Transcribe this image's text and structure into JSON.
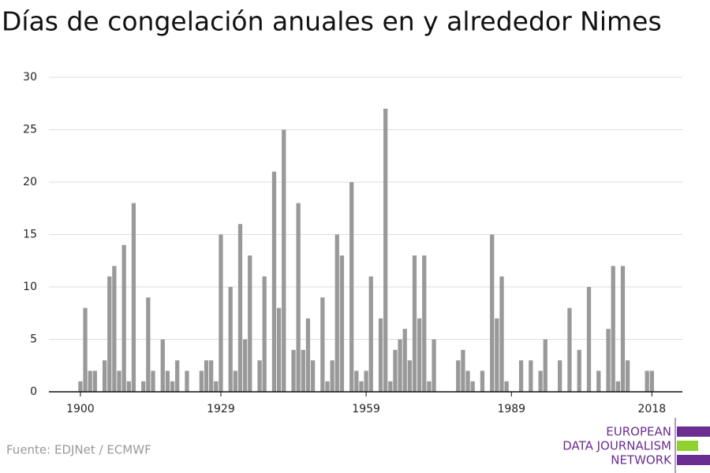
{
  "chart_data": {
    "type": "bar",
    "title": "Días de congelación anuales en y alrededor Nimes",
    "source": "Fuente: EDJNet / ECMWF",
    "logo": [
      "EUROPEAN",
      "DATA JOURNALISM",
      "NETWORK"
    ],
    "color": "#999999",
    "x": [
      1900,
      1901,
      1902,
      1903,
      1904,
      1905,
      1906,
      1907,
      1908,
      1909,
      1910,
      1911,
      1912,
      1913,
      1914,
      1915,
      1916,
      1917,
      1918,
      1919,
      1920,
      1921,
      1922,
      1923,
      1924,
      1925,
      1926,
      1927,
      1928,
      1929,
      1930,
      1931,
      1932,
      1933,
      1934,
      1935,
      1936,
      1937,
      1938,
      1939,
      1940,
      1941,
      1942,
      1943,
      1944,
      1945,
      1946,
      1947,
      1948,
      1949,
      1950,
      1951,
      1952,
      1953,
      1954,
      1955,
      1956,
      1957,
      1958,
      1959,
      1960,
      1961,
      1962,
      1963,
      1964,
      1965,
      1966,
      1967,
      1968,
      1969,
      1970,
      1971,
      1972,
      1973,
      1974,
      1975,
      1976,
      1977,
      1978,
      1979,
      1980,
      1981,
      1982,
      1983,
      1984,
      1985,
      1986,
      1987,
      1988,
      1989,
      1990,
      1991,
      1992,
      1993,
      1994,
      1995,
      1996,
      1997,
      1998,
      1999,
      2000,
      2001,
      2002,
      2003,
      2004,
      2005,
      2006,
      2007,
      2008,
      2009,
      2010,
      2011,
      2012,
      2013,
      2014,
      2015,
      2016,
      2017,
      2018
    ],
    "values": [
      1,
      8,
      2,
      2,
      0,
      3,
      11,
      12,
      2,
      14,
      1,
      18,
      0,
      1,
      9,
      2,
      0,
      5,
      2,
      1,
      3,
      0,
      2,
      0,
      0,
      2,
      3,
      3,
      1,
      15,
      0,
      10,
      2,
      16,
      5,
      13,
      0,
      3,
      11,
      0,
      21,
      8,
      25,
      0,
      4,
      18,
      4,
      7,
      3,
      0,
      9,
      1,
      3,
      15,
      13,
      0,
      20,
      2,
      1,
      2,
      11,
      0,
      7,
      27,
      1,
      4,
      5,
      6,
      3,
      13,
      7,
      13,
      1,
      5,
      0,
      0,
      0,
      0,
      3,
      4,
      2,
      1,
      0,
      2,
      0,
      15,
      7,
      11,
      1,
      0,
      0,
      3,
      0,
      3,
      0,
      2,
      5,
      0,
      0,
      3,
      0,
      8,
      0,
      4,
      0,
      10,
      0,
      2,
      0,
      6,
      12,
      1,
      12,
      3,
      0,
      0,
      0,
      2,
      2
    ],
    "xlim": [
      1893.5,
      2024.3
    ],
    "xticks": [
      1900,
      1929,
      1959,
      1989,
      2018
    ],
    "ylim": [
      0,
      30
    ],
    "yticks": [
      0,
      5,
      10,
      15,
      20,
      25,
      30
    ],
    "grid": true
  }
}
